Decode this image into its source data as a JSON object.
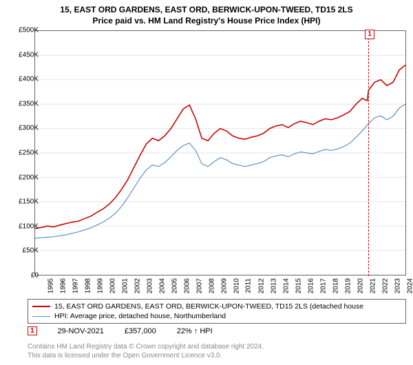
{
  "title": {
    "line1": "15, EAST ORD GARDENS, EAST ORD, BERWICK-UPON-TWEED, TD15 2LS",
    "line2": "Price paid vs. HM Land Registry's House Price Index (HPI)"
  },
  "chart": {
    "type": "line",
    "background_color": "#ffffff",
    "grid_color": "#e6e6e6",
    "axis_color": "#666666",
    "ylim": [
      0,
      500000
    ],
    "ytick_step": 50000,
    "ytick_labels": [
      "£0",
      "£50K",
      "£100K",
      "£150K",
      "£200K",
      "£250K",
      "£300K",
      "£350K",
      "£400K",
      "£450K",
      "£500K"
    ],
    "xlim": [
      1995,
      2025
    ],
    "xtick_step": 1,
    "xtick_labels": [
      "1995",
      "1996",
      "1997",
      "1998",
      "1999",
      "2000",
      "2001",
      "2002",
      "2003",
      "2004",
      "2005",
      "2006",
      "2007",
      "2008",
      "2009",
      "2010",
      "2011",
      "2012",
      "2013",
      "2014",
      "2015",
      "2016",
      "2017",
      "2018",
      "2019",
      "2020",
      "2021",
      "2022",
      "2023",
      "2024"
    ],
    "label_fontsize": 10,
    "title_fontsize": 12,
    "series": [
      {
        "name": "price-paid",
        "color": "#cc0000",
        "line_width": 1.6,
        "data": [
          [
            1995,
            95000
          ],
          [
            1995.5,
            97000
          ],
          [
            1996,
            100000
          ],
          [
            1996.5,
            98000
          ],
          [
            1997,
            102000
          ],
          [
            1997.5,
            105000
          ],
          [
            1998,
            108000
          ],
          [
            1998.5,
            110000
          ],
          [
            1999,
            115000
          ],
          [
            1999.5,
            120000
          ],
          [
            2000,
            128000
          ],
          [
            2000.5,
            135000
          ],
          [
            2001,
            145000
          ],
          [
            2001.5,
            158000
          ],
          [
            2002,
            175000
          ],
          [
            2002.5,
            195000
          ],
          [
            2003,
            220000
          ],
          [
            2003.5,
            245000
          ],
          [
            2004,
            268000
          ],
          [
            2004.5,
            280000
          ],
          [
            2005,
            275000
          ],
          [
            2005.5,
            285000
          ],
          [
            2006,
            300000
          ],
          [
            2006.5,
            320000
          ],
          [
            2007,
            340000
          ],
          [
            2007.5,
            348000
          ],
          [
            2008,
            320000
          ],
          [
            2008.5,
            280000
          ],
          [
            2009,
            275000
          ],
          [
            2009.5,
            290000
          ],
          [
            2010,
            300000
          ],
          [
            2010.5,
            295000
          ],
          [
            2011,
            285000
          ],
          [
            2011.5,
            280000
          ],
          [
            2012,
            278000
          ],
          [
            2012.5,
            282000
          ],
          [
            2013,
            285000
          ],
          [
            2013.5,
            290000
          ],
          [
            2014,
            300000
          ],
          [
            2014.5,
            305000
          ],
          [
            2015,
            308000
          ],
          [
            2015.5,
            302000
          ],
          [
            2016,
            310000
          ],
          [
            2016.5,
            315000
          ],
          [
            2017,
            312000
          ],
          [
            2017.5,
            308000
          ],
          [
            2018,
            315000
          ],
          [
            2018.5,
            320000
          ],
          [
            2019,
            318000
          ],
          [
            2019.5,
            322000
          ],
          [
            2020,
            328000
          ],
          [
            2020.5,
            335000
          ],
          [
            2021,
            350000
          ],
          [
            2021.5,
            362000
          ],
          [
            2021.91,
            357000
          ],
          [
            2022,
            378000
          ],
          [
            2022.5,
            395000
          ],
          [
            2023,
            400000
          ],
          [
            2023.5,
            388000
          ],
          [
            2024,
            395000
          ],
          [
            2024.5,
            420000
          ],
          [
            2025,
            430000
          ]
        ]
      },
      {
        "name": "hpi",
        "color": "#5b8fc7",
        "line_width": 1.2,
        "data": [
          [
            1995,
            75000
          ],
          [
            1995.5,
            76000
          ],
          [
            1996,
            77000
          ],
          [
            1996.5,
            78000
          ],
          [
            1997,
            80000
          ],
          [
            1997.5,
            82000
          ],
          [
            1998,
            85000
          ],
          [
            1998.5,
            88000
          ],
          [
            1999,
            92000
          ],
          [
            1999.5,
            96000
          ],
          [
            2000,
            102000
          ],
          [
            2000.5,
            108000
          ],
          [
            2001,
            116000
          ],
          [
            2001.5,
            126000
          ],
          [
            2002,
            140000
          ],
          [
            2002.5,
            158000
          ],
          [
            2003,
            178000
          ],
          [
            2003.5,
            198000
          ],
          [
            2004,
            215000
          ],
          [
            2004.5,
            225000
          ],
          [
            2005,
            222000
          ],
          [
            2005.5,
            230000
          ],
          [
            2006,
            242000
          ],
          [
            2006.5,
            255000
          ],
          [
            2007,
            265000
          ],
          [
            2007.5,
            270000
          ],
          [
            2008,
            255000
          ],
          [
            2008.5,
            228000
          ],
          [
            2009,
            222000
          ],
          [
            2009.5,
            232000
          ],
          [
            2010,
            240000
          ],
          [
            2010.5,
            236000
          ],
          [
            2011,
            228000
          ],
          [
            2011.5,
            225000
          ],
          [
            2012,
            222000
          ],
          [
            2012.5,
            225000
          ],
          [
            2013,
            228000
          ],
          [
            2013.5,
            232000
          ],
          [
            2014,
            240000
          ],
          [
            2014.5,
            244000
          ],
          [
            2015,
            246000
          ],
          [
            2015.5,
            242000
          ],
          [
            2016,
            248000
          ],
          [
            2016.5,
            252000
          ],
          [
            2017,
            250000
          ],
          [
            2017.5,
            248000
          ],
          [
            2018,
            253000
          ],
          [
            2018.5,
            257000
          ],
          [
            2019,
            255000
          ],
          [
            2019.5,
            258000
          ],
          [
            2020,
            263000
          ],
          [
            2020.5,
            270000
          ],
          [
            2021,
            282000
          ],
          [
            2021.5,
            295000
          ],
          [
            2022,
            310000
          ],
          [
            2022.5,
            322000
          ],
          [
            2023,
            326000
          ],
          [
            2023.5,
            318000
          ],
          [
            2024,
            325000
          ],
          [
            2024.5,
            342000
          ],
          [
            2025,
            350000
          ]
        ]
      }
    ],
    "markers": [
      {
        "id": "1",
        "x": 2021.91,
        "label": "1"
      }
    ]
  },
  "legend": {
    "items": [
      {
        "color": "#cc0000",
        "line_width": 2,
        "label": "15, EAST ORD GARDENS, EAST ORD, BERWICK-UPON-TWEED, TD15 2LS (detached house"
      },
      {
        "color": "#5b8fc7",
        "line_width": 1.5,
        "label": "HPI: Average price, detached house, Northumberland"
      }
    ]
  },
  "info": {
    "marker": "1",
    "date": "29-NOV-2021",
    "price": "£357,000",
    "change": "22% ↑ HPI"
  },
  "footer": {
    "line1": "Contains HM Land Registry data © Crown copyright and database right 2024.",
    "line2": "This data is licensed under the Open Government Licence v3.0."
  }
}
